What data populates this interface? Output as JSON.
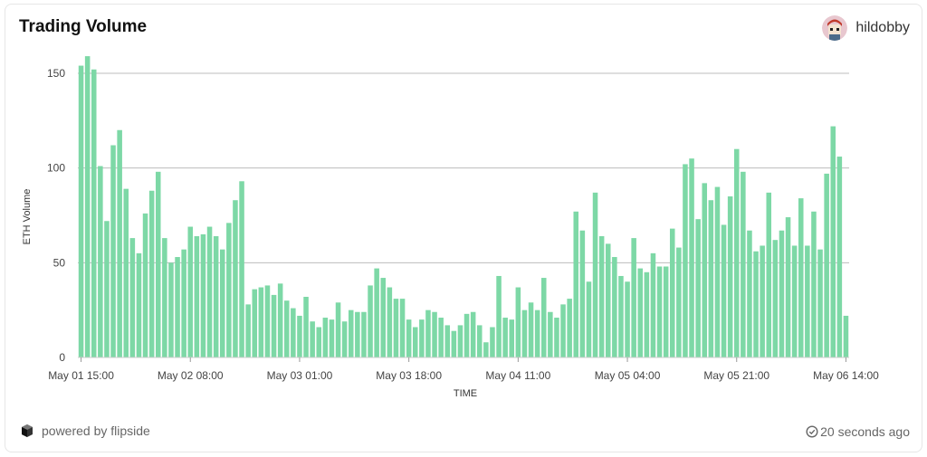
{
  "header": {
    "title": "Trading Volume",
    "username": "hildobby"
  },
  "footer": {
    "powered": "powered by flipside",
    "updated": "20 seconds ago"
  },
  "colors": {
    "bar": "#7dd8a6",
    "grid": "#bdbdbd"
  },
  "icons": {
    "brand": "flipside-logo-icon",
    "status": "check-circle-icon"
  },
  "chart_data": {
    "type": "bar",
    "title": "Trading Volume",
    "xlabel": "TIME",
    "ylabel": "ETH Volume",
    "ylim": [
      0,
      160
    ],
    "yticks": [
      0,
      50,
      100,
      150
    ],
    "grid": true,
    "xtick_labels": [
      "May 01 15:00",
      "May 02 08:00",
      "May 03 01:00",
      "May 03 18:00",
      "May 04 11:00",
      "May 05 04:00",
      "May 05 21:00",
      "May 06 14:00"
    ],
    "xtick_every": 17,
    "series": [
      {
        "values": [
          154,
          159,
          152,
          101,
          72,
          112,
          120,
          89,
          63,
          55,
          76,
          88,
          98,
          63,
          50,
          53,
          57,
          69,
          64,
          65,
          69,
          64,
          57,
          71,
          83,
          93,
          28,
          36,
          37,
          38,
          33,
          39,
          30,
          26,
          22,
          32,
          19,
          16,
          21,
          20,
          29,
          19,
          25,
          24,
          24,
          38,
          47,
          42,
          37,
          31,
          31,
          20,
          16,
          20,
          25,
          24,
          21,
          17,
          14,
          17,
          23,
          24,
          17,
          8,
          16,
          43,
          21,
          20,
          37,
          25,
          29,
          25,
          42,
          24,
          21,
          28,
          31,
          77,
          67,
          40,
          87,
          64,
          60,
          53,
          43,
          40,
          63,
          47,
          45,
          55,
          48,
          48,
          68,
          58,
          102,
          105,
          73,
          92,
          83,
          90,
          70,
          85,
          110,
          98,
          67,
          56,
          59,
          87,
          62,
          67,
          74,
          59,
          84,
          59,
          77,
          57,
          97,
          122,
          106,
          22
        ]
      }
    ]
  }
}
